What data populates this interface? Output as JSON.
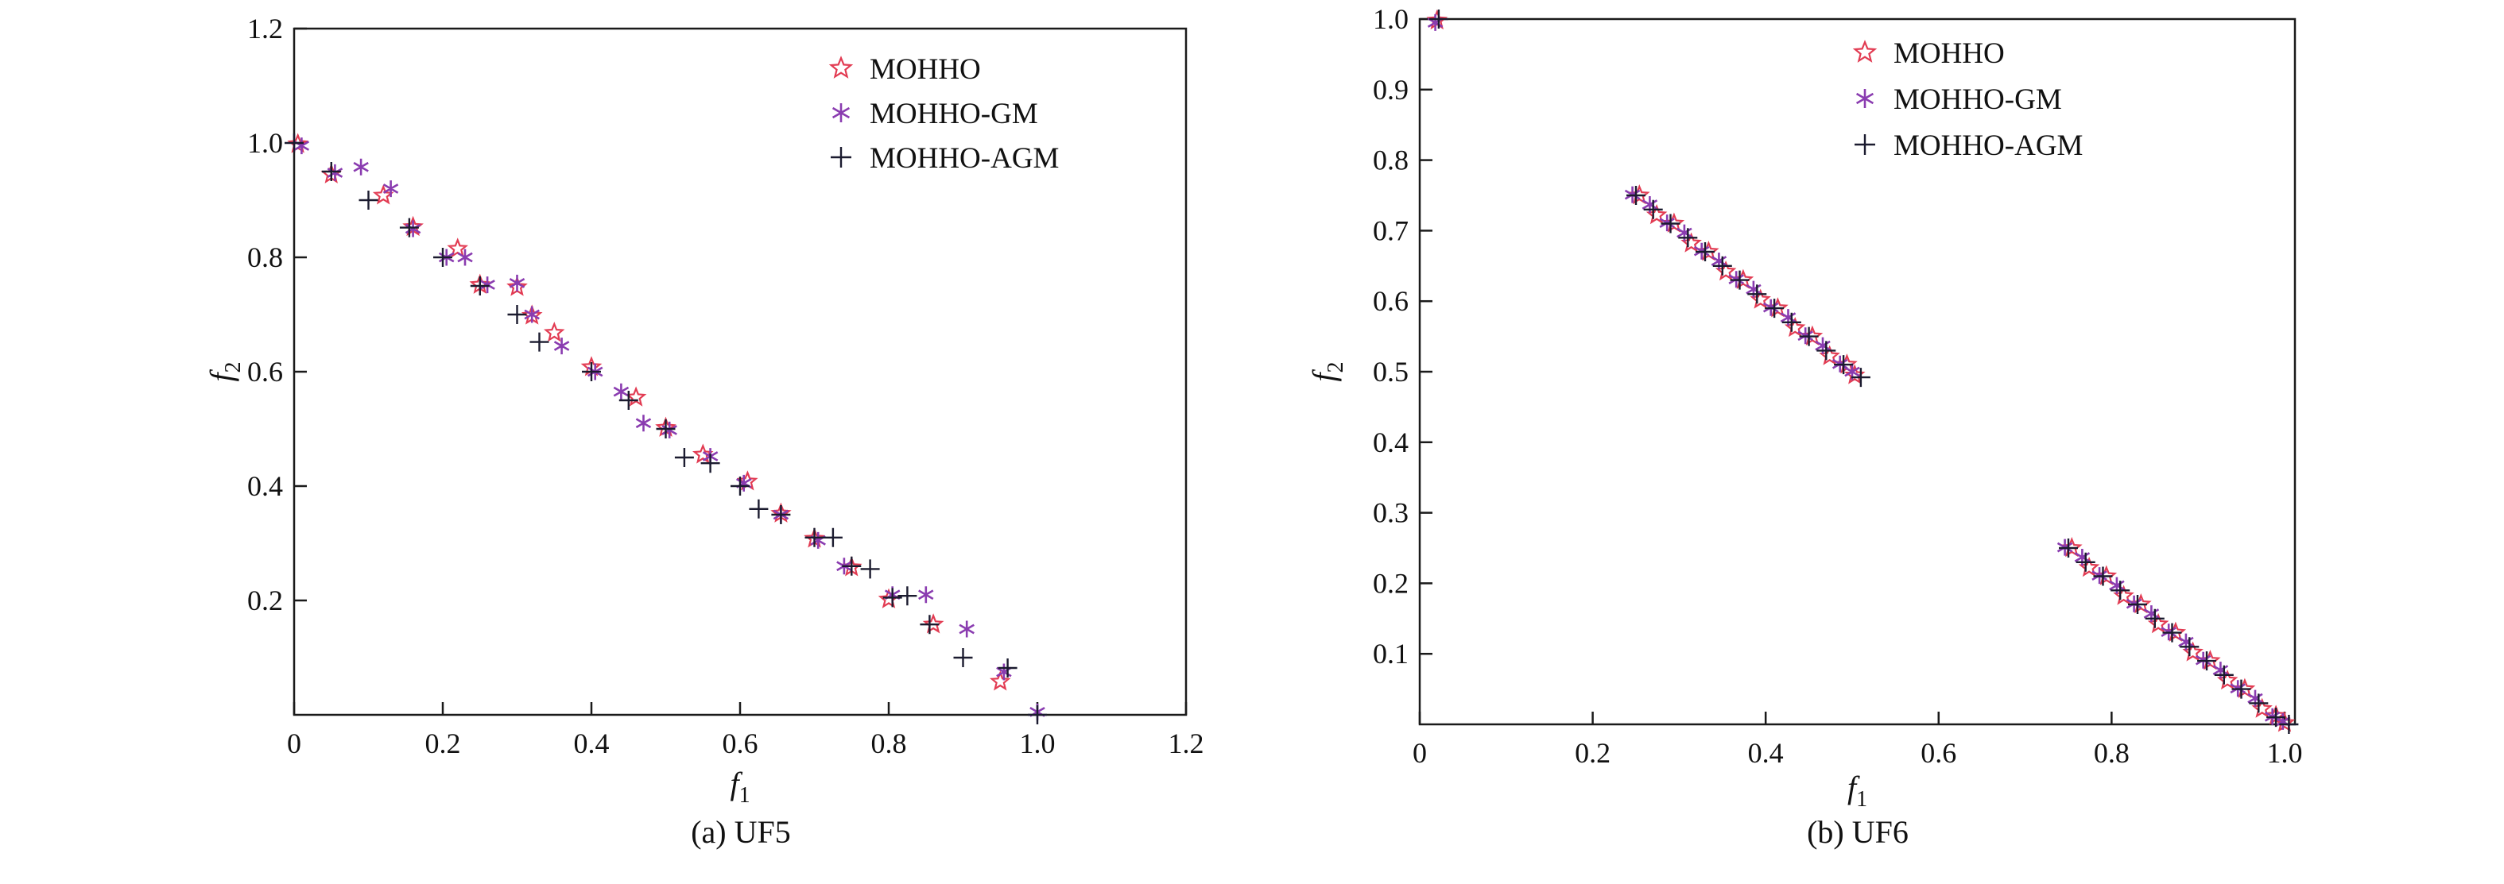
{
  "figure": {
    "background": "#ffffff",
    "text_color": "#111111",
    "axis_color": "#1a1a1a"
  },
  "chart_data": [
    {
      "type": "scatter",
      "caption": "(a) UF5",
      "xlabel_base": "f",
      "xlabel_sub": "1",
      "ylabel_base": "f",
      "ylabel_sub": "2",
      "x_axis": {
        "min": 0,
        "max": 1.2,
        "ticks": [
          0,
          0.2,
          0.4,
          0.6,
          0.8,
          1.0,
          1.2
        ],
        "tick_labels": [
          "0",
          "0.2",
          "0.4",
          "0.6",
          "0.8",
          "1.0",
          "1.2"
        ]
      },
      "y_axis": {
        "min": 0,
        "max": 1.2,
        "ticks": [
          0.2,
          0.4,
          0.6,
          0.8,
          1.0,
          1.2
        ],
        "tick_labels": [
          "0.2",
          "0.4",
          "0.6",
          "0.8",
          "1.0",
          "1.2"
        ]
      },
      "legend_position": "top-right",
      "grid": false,
      "series": [
        {
          "name": "MOHHO",
          "marker": "star",
          "color": "#e23b52",
          "points": [
            [
              0.005,
              0.998
            ],
            [
              0.05,
              0.945
            ],
            [
              0.12,
              0.908
            ],
            [
              0.16,
              0.853
            ],
            [
              0.22,
              0.815
            ],
            [
              0.25,
              0.752
            ],
            [
              0.3,
              0.748
            ],
            [
              0.32,
              0.698
            ],
            [
              0.35,
              0.668
            ],
            [
              0.4,
              0.608
            ],
            [
              0.46,
              0.555
            ],
            [
              0.5,
              0.502
            ],
            [
              0.55,
              0.455
            ],
            [
              0.61,
              0.408
            ],
            [
              0.655,
              0.352
            ],
            [
              0.7,
              0.308
            ],
            [
              0.75,
              0.258
            ],
            [
              0.8,
              0.202
            ],
            [
              0.86,
              0.158
            ],
            [
              0.95,
              0.058
            ]
          ]
        },
        {
          "name": "MOHHO-GM",
          "marker": "asterisk",
          "color": "#8a3cb0",
          "points": [
            [
              0.01,
              0.995
            ],
            [
              0.055,
              0.948
            ],
            [
              0.09,
              0.958
            ],
            [
              0.13,
              0.92
            ],
            [
              0.16,
              0.85
            ],
            [
              0.205,
              0.8
            ],
            [
              0.23,
              0.8
            ],
            [
              0.26,
              0.752
            ],
            [
              0.3,
              0.755
            ],
            [
              0.32,
              0.7
            ],
            [
              0.36,
              0.645
            ],
            [
              0.405,
              0.6
            ],
            [
              0.44,
              0.565
            ],
            [
              0.47,
              0.51
            ],
            [
              0.505,
              0.498
            ],
            [
              0.56,
              0.452
            ],
            [
              0.605,
              0.405
            ],
            [
              0.655,
              0.35
            ],
            [
              0.705,
              0.305
            ],
            [
              0.74,
              0.26
            ],
            [
              0.805,
              0.21
            ],
            [
              0.85,
              0.21
            ],
            [
              0.905,
              0.15
            ],
            [
              0.955,
              0.075
            ],
            [
              1.0,
              0.005
            ]
          ]
        },
        {
          "name": "MOHHO-AGM",
          "marker": "plus",
          "color": "#1b1b2f",
          "points": [
            [
              0.0,
              1.0
            ],
            [
              0.05,
              0.95
            ],
            [
              0.1,
              0.9
            ],
            [
              0.155,
              0.852
            ],
            [
              0.2,
              0.8
            ],
            [
              0.25,
              0.75
            ],
            [
              0.3,
              0.7
            ],
            [
              0.33,
              0.652
            ],
            [
              0.4,
              0.6
            ],
            [
              0.45,
              0.55
            ],
            [
              0.5,
              0.5
            ],
            [
              0.525,
              0.45
            ],
            [
              0.56,
              0.44
            ],
            [
              0.6,
              0.4
            ],
            [
              0.625,
              0.36
            ],
            [
              0.655,
              0.35
            ],
            [
              0.7,
              0.31
            ],
            [
              0.725,
              0.31
            ],
            [
              0.75,
              0.26
            ],
            [
              0.775,
              0.255
            ],
            [
              0.805,
              0.205
            ],
            [
              0.825,
              0.208
            ],
            [
              0.855,
              0.158
            ],
            [
              0.9,
              0.1
            ],
            [
              0.96,
              0.082
            ],
            [
              1.0,
              0.0
            ]
          ]
        }
      ]
    },
    {
      "type": "scatter",
      "caption": "(b) UF6",
      "xlabel_base": "f",
      "xlabel_sub": "1",
      "ylabel_base": "f",
      "ylabel_sub": "2",
      "x_axis": {
        "min": 0,
        "max": 1.012,
        "ticks": [
          0,
          0.2,
          0.4,
          0.6,
          0.8,
          1.0
        ],
        "tick_labels": [
          "0",
          "0.2",
          "0.4",
          "0.6",
          "0.8",
          "1.0"
        ]
      },
      "y_axis": {
        "min": 0,
        "max": 1.0,
        "ticks": [
          0.1,
          0.2,
          0.3,
          0.4,
          0.5,
          0.6,
          0.7,
          0.8,
          0.9,
          1.0
        ],
        "tick_labels": [
          "0.1",
          "0.2",
          "0.3",
          "0.4",
          "0.5",
          "0.6",
          "0.7",
          "0.8",
          "0.9",
          "1.0"
        ]
      },
      "legend_position": "top-right",
      "grid": false,
      "series": [
        {
          "name": "MOHHO",
          "marker": "star",
          "color": "#e23b52",
          "points": [
            [
              0.02,
              0.998
            ],
            [
              0.254,
              0.75
            ],
            [
              0.274,
              0.722
            ],
            [
              0.294,
              0.71
            ],
            [
              0.314,
              0.682
            ],
            [
              0.334,
              0.67
            ],
            [
              0.354,
              0.642
            ],
            [
              0.374,
              0.63
            ],
            [
              0.394,
              0.602
            ],
            [
              0.414,
              0.59
            ],
            [
              0.434,
              0.562
            ],
            [
              0.454,
              0.55
            ],
            [
              0.474,
              0.522
            ],
            [
              0.494,
              0.51
            ],
            [
              0.503,
              0.495
            ],
            [
              0.754,
              0.25
            ],
            [
              0.774,
              0.222
            ],
            [
              0.794,
              0.21
            ],
            [
              0.814,
              0.182
            ],
            [
              0.834,
              0.17
            ],
            [
              0.854,
              0.142
            ],
            [
              0.874,
              0.13
            ],
            [
              0.894,
              0.102
            ],
            [
              0.914,
              0.09
            ],
            [
              0.934,
              0.062
            ],
            [
              0.954,
              0.05
            ],
            [
              0.974,
              0.022
            ],
            [
              0.99,
              0.012
            ],
            [
              1.0,
              0.002
            ]
          ]
        },
        {
          "name": "MOHHO-GM",
          "marker": "asterisk",
          "color": "#8a3cb0",
          "points": [
            [
              0.018,
              0.995
            ],
            [
              0.246,
              0.751
            ],
            [
              0.266,
              0.737
            ],
            [
              0.286,
              0.711
            ],
            [
              0.306,
              0.697
            ],
            [
              0.326,
              0.671
            ],
            [
              0.346,
              0.657
            ],
            [
              0.366,
              0.631
            ],
            [
              0.386,
              0.617
            ],
            [
              0.406,
              0.591
            ],
            [
              0.426,
              0.577
            ],
            [
              0.446,
              0.551
            ],
            [
              0.466,
              0.537
            ],
            [
              0.486,
              0.511
            ],
            [
              0.5,
              0.5
            ],
            [
              0.746,
              0.251
            ],
            [
              0.766,
              0.237
            ],
            [
              0.786,
              0.211
            ],
            [
              0.806,
              0.197
            ],
            [
              0.826,
              0.171
            ],
            [
              0.846,
              0.157
            ],
            [
              0.866,
              0.131
            ],
            [
              0.886,
              0.117
            ],
            [
              0.906,
              0.091
            ],
            [
              0.926,
              0.077
            ],
            [
              0.946,
              0.051
            ],
            [
              0.966,
              0.037
            ],
            [
              0.986,
              0.011
            ],
            [
              0.998,
              0.004
            ]
          ]
        },
        {
          "name": "MOHHO-AGM",
          "marker": "plus",
          "color": "#1b1b2f",
          "points": [
            [
              0.022,
              1.0
            ],
            [
              0.25,
              0.75
            ],
            [
              0.27,
              0.73
            ],
            [
              0.29,
              0.71
            ],
            [
              0.31,
              0.69
            ],
            [
              0.33,
              0.67
            ],
            [
              0.35,
              0.65
            ],
            [
              0.37,
              0.63
            ],
            [
              0.39,
              0.61
            ],
            [
              0.41,
              0.59
            ],
            [
              0.43,
              0.57
            ],
            [
              0.45,
              0.55
            ],
            [
              0.47,
              0.53
            ],
            [
              0.49,
              0.51
            ],
            [
              0.51,
              0.492
            ],
            [
              0.75,
              0.25
            ],
            [
              0.77,
              0.23
            ],
            [
              0.79,
              0.21
            ],
            [
              0.81,
              0.19
            ],
            [
              0.83,
              0.17
            ],
            [
              0.85,
              0.15
            ],
            [
              0.87,
              0.13
            ],
            [
              0.89,
              0.11
            ],
            [
              0.91,
              0.09
            ],
            [
              0.93,
              0.07
            ],
            [
              0.95,
              0.05
            ],
            [
              0.97,
              0.03
            ],
            [
              0.99,
              0.01
            ],
            [
              1.005,
              0.0
            ]
          ]
        }
      ]
    }
  ]
}
